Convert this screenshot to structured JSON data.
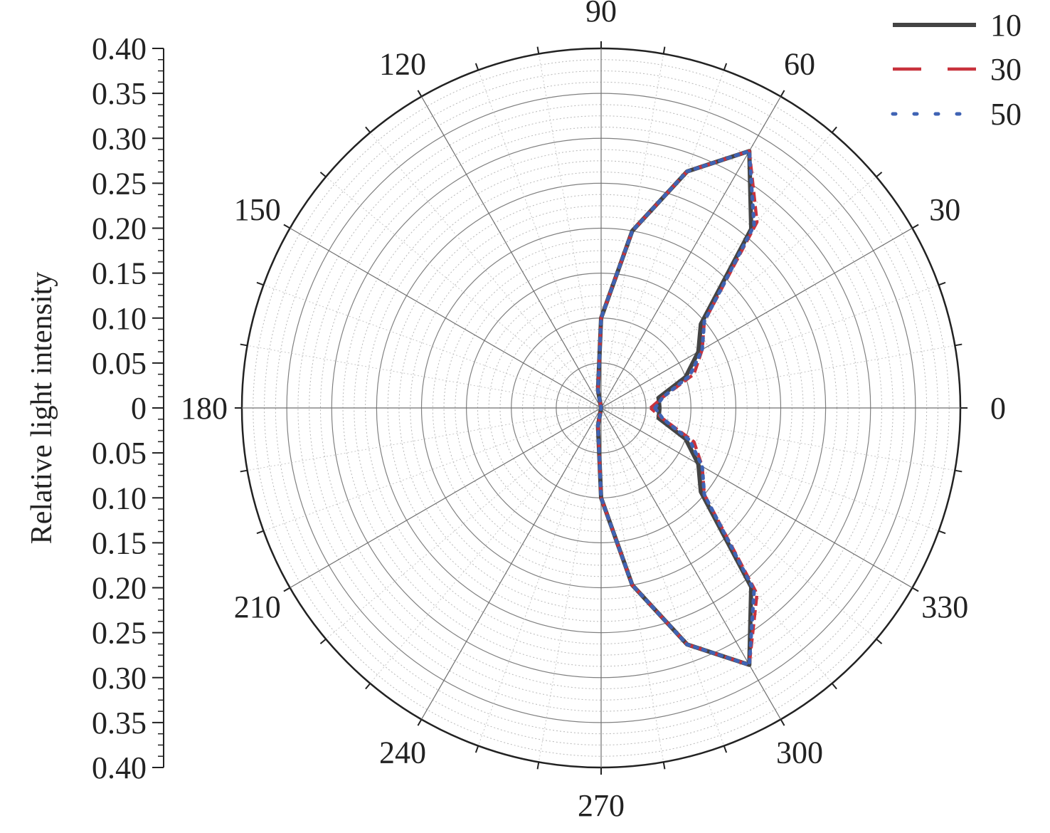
{
  "chart_data": {
    "type": "line",
    "subtype": "polar",
    "ylabel": "Relative light intensity",
    "radial_range": [
      0,
      0.4
    ],
    "radial_ticks": [
      0,
      0.05,
      0.1,
      0.15,
      0.2,
      0.25,
      0.3,
      0.35,
      0.4
    ],
    "radial_tick_labels_top": [
      "0.40",
      "0.35",
      "0.30",
      "0.25",
      "0.20",
      "0.15",
      "0.10",
      "0.05",
      "0"
    ],
    "radial_tick_labels_bottom": [
      "0.05",
      "0.10",
      "0.15",
      "0.20",
      "0.25",
      "0.30",
      "0.35",
      "0.40"
    ],
    "angle_ticks": [
      0,
      30,
      60,
      90,
      120,
      150,
      180,
      210,
      240,
      270,
      300,
      330
    ],
    "angle_tick_labels": [
      "0",
      "30",
      "60",
      "90",
      "120",
      "150",
      "180",
      "210",
      "240",
      "270",
      "300",
      "330"
    ],
    "angle_unit": "degrees",
    "grid": true,
    "legend_position": "top-right",
    "series": [
      {
        "name": "10",
        "color": "#444444",
        "style": "solid",
        "angle": [
          0,
          10,
          20,
          30,
          40,
          50,
          60,
          70,
          80,
          90,
          100,
          180,
          260,
          270,
          280,
          290,
          300,
          310,
          320,
          330,
          340,
          350,
          360
        ],
        "r": [
          0.065,
          0.065,
          0.1,
          0.125,
          0.145,
          0.26,
          0.33,
          0.28,
          0.2,
          0.1,
          0.02,
          0.0,
          0.02,
          0.1,
          0.2,
          0.28,
          0.33,
          0.26,
          0.145,
          0.125,
          0.1,
          0.065,
          0.065
        ]
      },
      {
        "name": "30",
        "color": "#c8323c",
        "style": "dashed",
        "angle": [
          0,
          10,
          20,
          30,
          40,
          50,
          60,
          70,
          80,
          90,
          100,
          180,
          260,
          270,
          280,
          290,
          300,
          310,
          320,
          330,
          340,
          350,
          360
        ],
        "r": [
          0.055,
          0.07,
          0.11,
          0.13,
          0.15,
          0.27,
          0.33,
          0.28,
          0.2,
          0.1,
          0.02,
          0.0,
          0.02,
          0.1,
          0.2,
          0.28,
          0.33,
          0.27,
          0.15,
          0.13,
          0.11,
          0.07,
          0.055
        ]
      },
      {
        "name": "50",
        "color": "#3f63b4",
        "style": "dotted",
        "angle": [
          0,
          10,
          20,
          30,
          40,
          50,
          60,
          70,
          80,
          90,
          100,
          180,
          260,
          270,
          280,
          290,
          300,
          310,
          320,
          330,
          340,
          350,
          360
        ],
        "r": [
          0.06,
          0.07,
          0.105,
          0.13,
          0.15,
          0.265,
          0.33,
          0.28,
          0.2,
          0.1,
          0.02,
          0.0,
          0.02,
          0.1,
          0.2,
          0.28,
          0.33,
          0.265,
          0.15,
          0.13,
          0.105,
          0.07,
          0.06
        ]
      }
    ]
  }
}
